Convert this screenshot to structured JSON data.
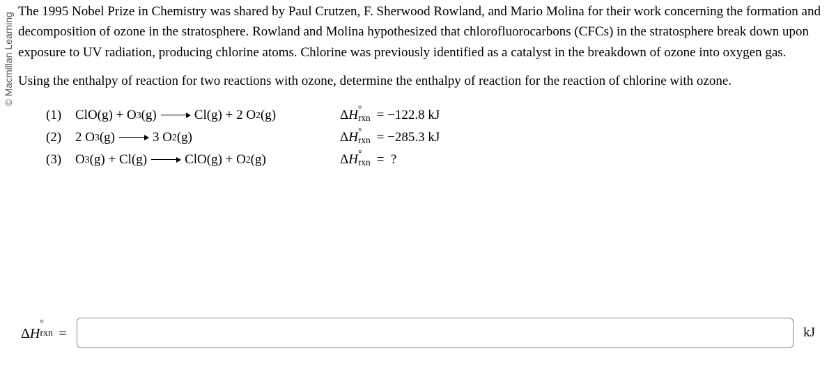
{
  "copyright": "© Macmillan Learning",
  "para1": "The 1995 Nobel Prize in Chemistry was shared by Paul Crutzen, F. Sherwood Rowland, and Mario Molina for their work concerning the formation and decomposition of ozone in the stratosphere. Rowland and Molina hypothesized that chlorofluorocarbons (CFCs) in the stratosphere break down upon exposure to UV radiation, producing chlorine atoms. Chlorine was previously identified as a catalyst in the breakdown of ozone into oxygen gas.",
  "para2": "Using the enthalpy of reaction for two reactions with ozone, determine the enthalpy of reaction for the reaction of chlorine with ozone.",
  "eq": {
    "n1": "(1)",
    "n2": "(2)",
    "n3": "(3)",
    "delta": "Δ",
    "H": "H",
    "rxn": "rxn",
    "circ": "°",
    "eqsign": "=",
    "v1": "−122.8 kJ",
    "v2": "−285.3 kJ",
    "v3": "?",
    "unit": "kJ"
  },
  "input": {
    "value": "",
    "placeholder": ""
  }
}
